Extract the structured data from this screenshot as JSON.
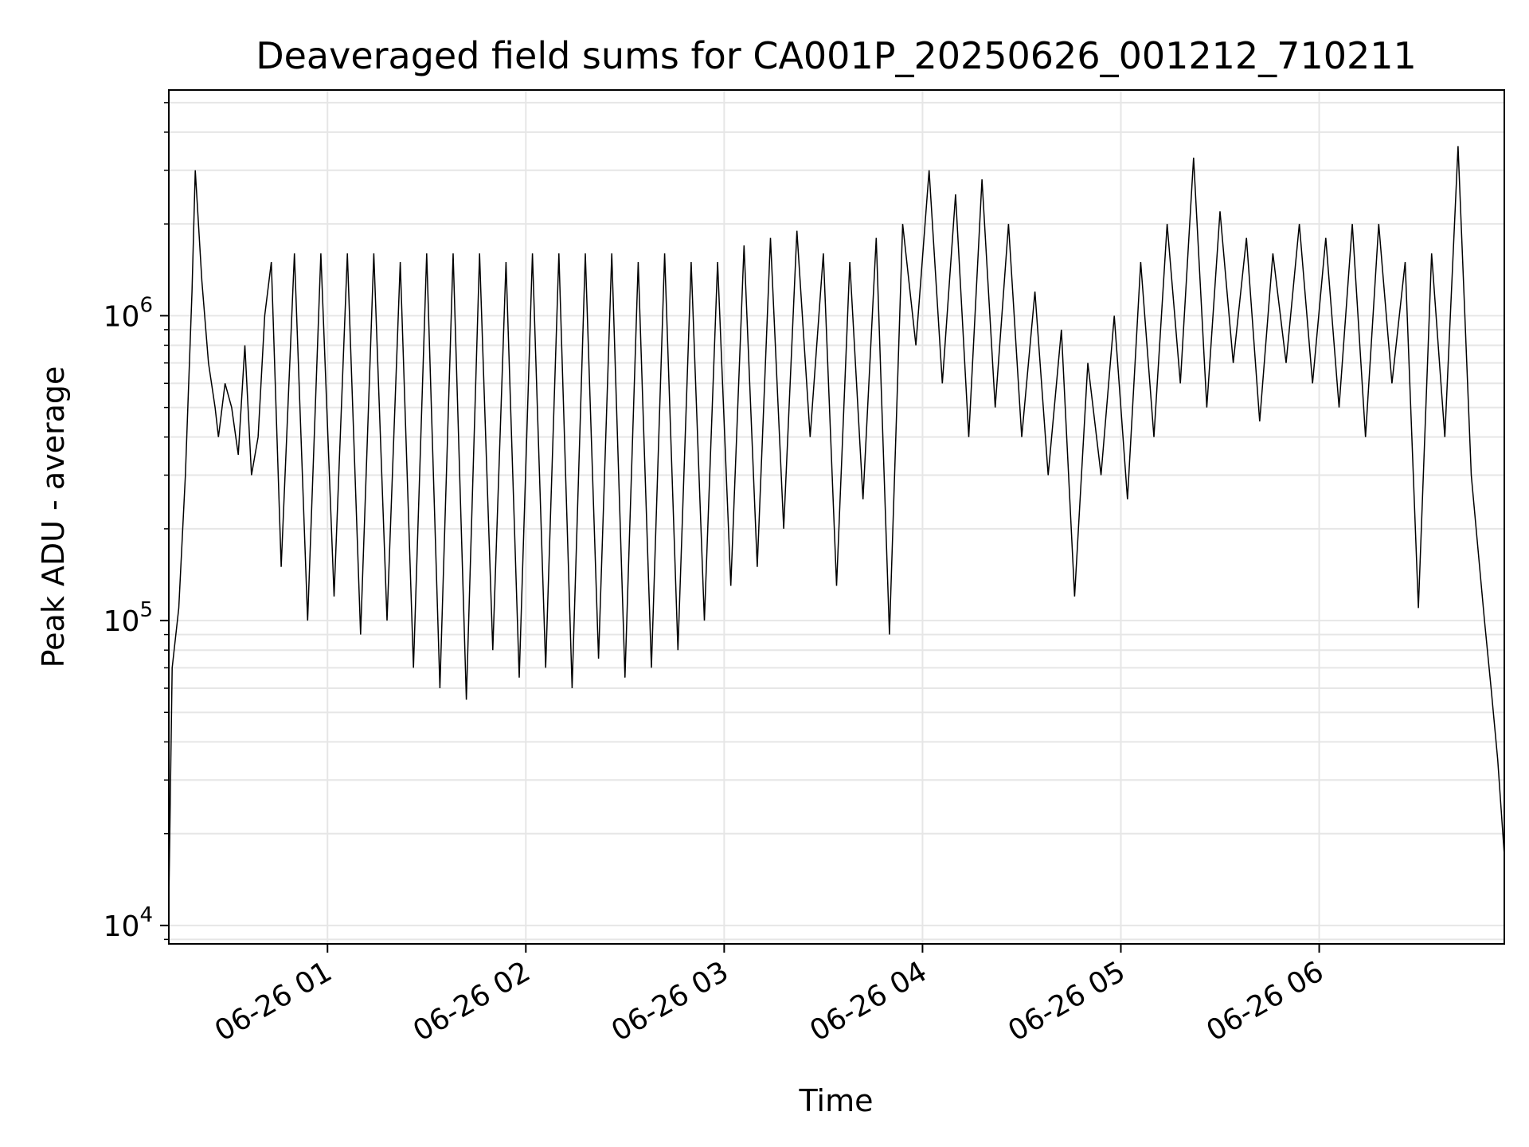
{
  "chart_data": {
    "type": "line",
    "title": "Deaveraged field sums for CA001P_20250626_001212_710211",
    "xlabel": "Time",
    "ylabel": "Peak ADU - average",
    "yscale": "log",
    "ylim": [
      8700,
      5500000
    ],
    "xlim": [
      "06-26 00:12",
      "06-26 06:56"
    ],
    "x_ticks": [
      {
        "t": "06-26 01:00",
        "label": "06-26 01"
      },
      {
        "t": "06-26 02:00",
        "label": "06-26 02"
      },
      {
        "t": "06-26 03:00",
        "label": "06-26 03"
      },
      {
        "t": "06-26 04:00",
        "label": "06-26 04"
      },
      {
        "t": "06-26 05:00",
        "label": "06-26 05"
      },
      {
        "t": "06-26 06:00",
        "label": "06-26 06"
      }
    ],
    "y_ticks": [
      {
        "value": 10000,
        "base": "10",
        "exp": "4"
      },
      {
        "value": 100000,
        "base": "10",
        "exp": "5"
      },
      {
        "value": 1000000,
        "base": "10",
        "exp": "6"
      }
    ],
    "grid": true,
    "line_color": "#000000",
    "grid_color": "#e6e6e6",
    "series": [
      {
        "x": [
          "06-26 00:12",
          "06-26 00:13",
          "06-26 00:15",
          "06-26 00:17",
          "06-26 00:19",
          "06-26 00:20",
          "06-26 00:22",
          "06-26 00:24",
          "06-26 00:26",
          "06-26 00:27",
          "06-26 00:29",
          "06-26 00:31",
          "06-26 00:33",
          "06-26 00:35",
          "06-26 00:37",
          "06-26 00:39",
          "06-26 00:41",
          "06-26 00:43",
          "06-26 00:46",
          "06-26 00:50",
          "06-26 00:54",
          "06-26 00:58",
          "06-26 01:02",
          "06-26 01:06",
          "06-26 01:10",
          "06-26 01:14",
          "06-26 01:18",
          "06-26 01:22",
          "06-26 01:26",
          "06-26 01:30",
          "06-26 01:34",
          "06-26 01:38",
          "06-26 01:42",
          "06-26 01:46",
          "06-26 01:50",
          "06-26 01:54",
          "06-26 01:58",
          "06-26 02:02",
          "06-26 02:06",
          "06-26 02:10",
          "06-26 02:14",
          "06-26 02:18",
          "06-26 02:22",
          "06-26 02:26",
          "06-26 02:30",
          "06-26 02:34",
          "06-26 02:38",
          "06-26 02:42",
          "06-26 02:46",
          "06-26 02:50",
          "06-26 02:54",
          "06-26 02:58",
          "06-26 03:02",
          "06-26 03:06",
          "06-26 03:10",
          "06-26 03:14",
          "06-26 03:18",
          "06-26 03:22",
          "06-26 03:26",
          "06-26 03:30",
          "06-26 03:34",
          "06-26 03:38",
          "06-26 03:42",
          "06-26 03:46",
          "06-26 03:50",
          "06-26 03:54",
          "06-26 03:58",
          "06-26 04:02",
          "06-26 04:06",
          "06-26 04:10",
          "06-26 04:14",
          "06-26 04:18",
          "06-26 04:22",
          "06-26 04:26",
          "06-26 04:30",
          "06-26 04:34",
          "06-26 04:38",
          "06-26 04:42",
          "06-26 04:46",
          "06-26 04:50",
          "06-26 04:54",
          "06-26 04:58",
          "06-26 05:02",
          "06-26 05:06",
          "06-26 05:10",
          "06-26 05:14",
          "06-26 05:18",
          "06-26 05:22",
          "06-26 05:26",
          "06-26 05:30",
          "06-26 05:34",
          "06-26 05:38",
          "06-26 05:42",
          "06-26 05:46",
          "06-26 05:50",
          "06-26 05:54",
          "06-26 05:58",
          "06-26 06:02",
          "06-26 06:06",
          "06-26 06:10",
          "06-26 06:14",
          "06-26 06:18",
          "06-26 06:22",
          "06-26 06:26",
          "06-26 06:30",
          "06-26 06:34",
          "06-26 06:38",
          "06-26 06:42",
          "06-26 06:46",
          "06-26 06:50",
          "06-26 06:52",
          "06-26 06:54",
          "06-26 06:56"
        ],
        "y": [
          12000,
          70000,
          110000,
          300000,
          1200000,
          3000000,
          1300000,
          700000,
          500000,
          400000,
          600000,
          500000,
          350000,
          800000,
          300000,
          400000,
          1000000,
          1500000,
          150000,
          1600000,
          100000,
          1600000,
          120000,
          1600000,
          90000,
          1600000,
          100000,
          1500000,
          70000,
          1600000,
          60000,
          1600000,
          55000,
          1600000,
          80000,
          1500000,
          65000,
          1600000,
          70000,
          1600000,
          60000,
          1600000,
          75000,
          1600000,
          65000,
          1500000,
          70000,
          1600000,
          80000,
          1500000,
          100000,
          1500000,
          130000,
          1700000,
          150000,
          1800000,
          200000,
          1900000,
          400000,
          1600000,
          130000,
          1500000,
          250000,
          1800000,
          90000,
          2000000,
          800000,
          3000000,
          600000,
          2500000,
          400000,
          2800000,
          500000,
          2000000,
          400000,
          1200000,
          300000,
          900000,
          120000,
          700000,
          300000,
          1000000,
          250000,
          1500000,
          400000,
          2000000,
          600000,
          3300000,
          500000,
          2200000,
          700000,
          1800000,
          450000,
          1600000,
          700000,
          2000000,
          600000,
          1800000,
          500000,
          2000000,
          400000,
          2000000,
          600000,
          1500000,
          110000,
          1600000,
          400000,
          3600000,
          300000,
          100000,
          60000,
          35000,
          17000
        ]
      }
    ]
  }
}
